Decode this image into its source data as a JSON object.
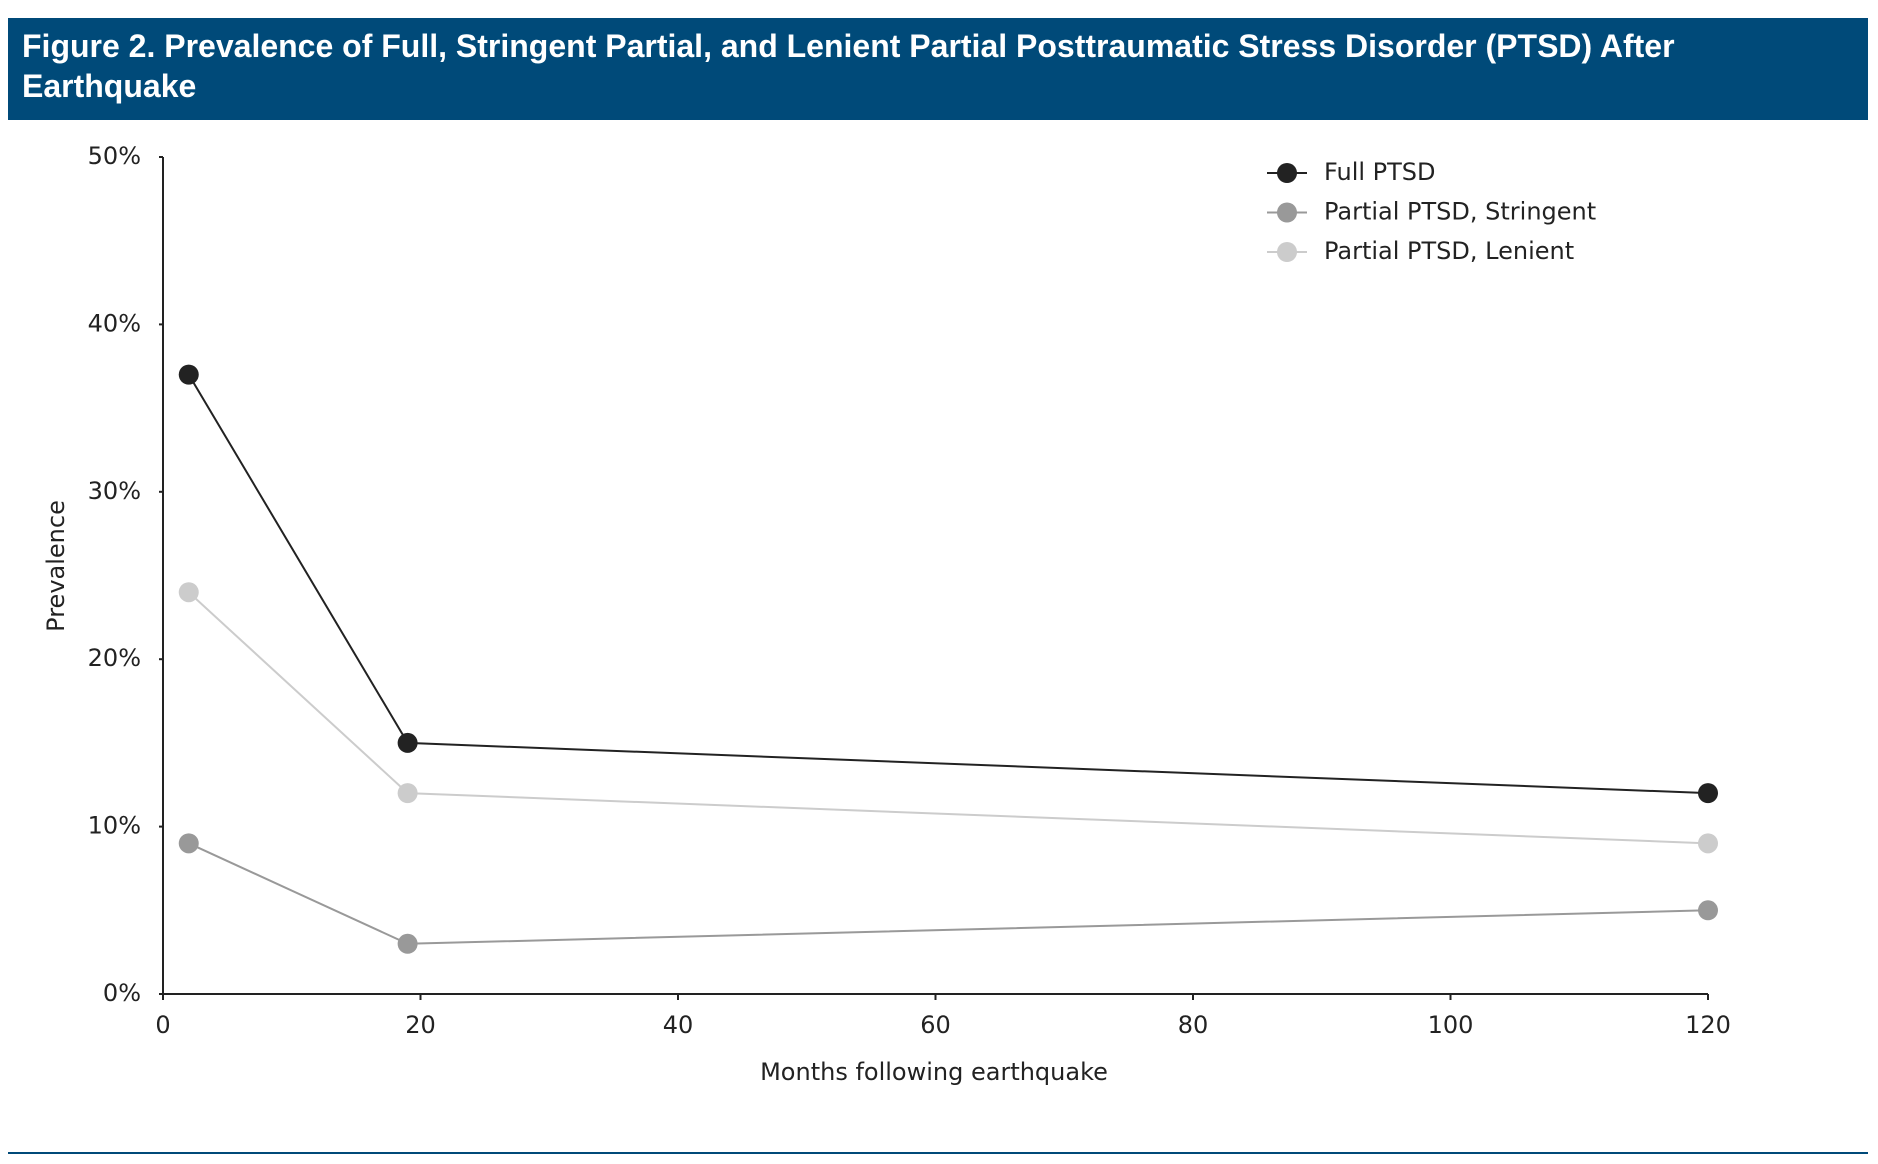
{
  "chart_data": {
    "type": "line",
    "title": "Figure 2. Prevalence of Full, Stringent Partial, and Lenient Partial Posttraumatic Stress Disorder (PTSD) After Earthquake",
    "x_label": "Months following earthquake",
    "y_label": "Prevalence",
    "series": [
      {
        "name": "Full PTSD",
        "color": "#222222",
        "x": [
          2,
          19,
          120
        ],
        "values": [
          37,
          15,
          12
        ]
      },
      {
        "name": "Partial PTSD, Stringent",
        "color": "#999999",
        "x": [
          2,
          19,
          120
        ],
        "values": [
          9,
          3,
          5
        ]
      },
      {
        "name": "Partial PTSD, Lenient",
        "color": "#cccccc",
        "x": [
          2,
          19,
          120
        ],
        "values": [
          24,
          12,
          9
        ]
      }
    ],
    "xlim": [
      0,
      120
    ],
    "xticks": [
      0,
      20,
      40,
      60,
      80,
      100,
      120
    ],
    "ylim": [
      0,
      50
    ],
    "yticks": [
      {
        "value": 0,
        "label": "0%"
      },
      {
        "value": 10,
        "label": "10%"
      },
      {
        "value": 20,
        "label": "20%"
      },
      {
        "value": 30,
        "label": "30%"
      },
      {
        "value": 40,
        "label": "40%"
      },
      {
        "value": 50,
        "label": "50%"
      }
    ],
    "grid": false,
    "legend": "top-right"
  }
}
